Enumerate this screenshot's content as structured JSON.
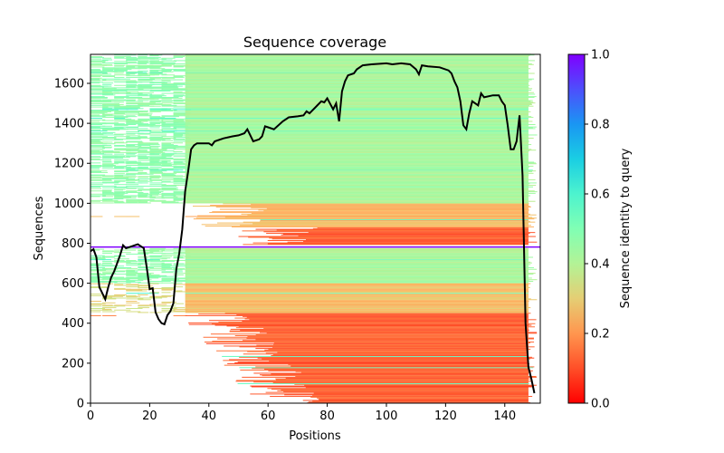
{
  "chart_data": {
    "type": "heatmap",
    "title": "Sequence coverage",
    "xlabel": "Positions",
    "ylabel": "Sequences",
    "xlim": [
      0,
      152
    ],
    "ylim": [
      0,
      1745
    ],
    "xticks": [
      0,
      20,
      40,
      60,
      80,
      100,
      120,
      140
    ],
    "yticks": [
      0,
      200,
      400,
      600,
      800,
      1000,
      1200,
      1400,
      1600
    ],
    "colorbar": {
      "label": "Sequence identity to query",
      "range": [
        0,
        1
      ],
      "ticks": [
        "0.0",
        "0.2",
        "0.4",
        "0.6",
        "0.8",
        "1.0"
      ],
      "colormap": "rainbow_r"
    },
    "query_row": 780,
    "coverage_line": {
      "color": "#000000",
      "points": [
        [
          0,
          760
        ],
        [
          1,
          770
        ],
        [
          2,
          730
        ],
        [
          3,
          580
        ],
        [
          4,
          550
        ],
        [
          5,
          520
        ],
        [
          6,
          580
        ],
        [
          7,
          630
        ],
        [
          8,
          660
        ],
        [
          9,
          700
        ],
        [
          10,
          740
        ],
        [
          11,
          790
        ],
        [
          12,
          775
        ],
        [
          13,
          780
        ],
        [
          14,
          785
        ],
        [
          15,
          790
        ],
        [
          16,
          795
        ],
        [
          17,
          785
        ],
        [
          18,
          775
        ],
        [
          19,
          680
        ],
        [
          20,
          570
        ],
        [
          21,
          575
        ],
        [
          22,
          455
        ],
        [
          23,
          420
        ],
        [
          24,
          400
        ],
        [
          25,
          395
        ],
        [
          26,
          440
        ],
        [
          27,
          460
        ],
        [
          28,
          500
        ],
        [
          29,
          670
        ],
        [
          30,
          750
        ],
        [
          31,
          870
        ],
        [
          32,
          1060
        ],
        [
          33,
          1160
        ],
        [
          34,
          1270
        ],
        [
          35,
          1290
        ],
        [
          36,
          1300
        ],
        [
          40,
          1300
        ],
        [
          41,
          1290
        ],
        [
          42,
          1310
        ],
        [
          45,
          1325
        ],
        [
          48,
          1335
        ],
        [
          50,
          1340
        ],
        [
          52,
          1350
        ],
        [
          53,
          1370
        ],
        [
          55,
          1310
        ],
        [
          57,
          1320
        ],
        [
          58,
          1335
        ],
        [
          59,
          1385
        ],
        [
          60,
          1380
        ],
        [
          62,
          1370
        ],
        [
          65,
          1410
        ],
        [
          67,
          1430
        ],
        [
          70,
          1435
        ],
        [
          72,
          1440
        ],
        [
          73,
          1460
        ],
        [
          74,
          1450
        ],
        [
          76,
          1480
        ],
        [
          78,
          1510
        ],
        [
          79,
          1505
        ],
        [
          80,
          1525
        ],
        [
          82,
          1470
        ],
        [
          83,
          1500
        ],
        [
          84,
          1410
        ],
        [
          85,
          1560
        ],
        [
          86,
          1610
        ],
        [
          87,
          1640
        ],
        [
          89,
          1650
        ],
        [
          90,
          1670
        ],
        [
          92,
          1690
        ],
        [
          95,
          1695
        ],
        [
          100,
          1700
        ],
        [
          102,
          1695
        ],
        [
          105,
          1700
        ],
        [
          108,
          1695
        ],
        [
          110,
          1670
        ],
        [
          111,
          1645
        ],
        [
          112,
          1690
        ],
        [
          114,
          1685
        ],
        [
          118,
          1680
        ],
        [
          121,
          1665
        ],
        [
          122,
          1650
        ],
        [
          123,
          1610
        ],
        [
          124,
          1580
        ],
        [
          125,
          1510
        ],
        [
          126,
          1390
        ],
        [
          127,
          1370
        ],
        [
          128,
          1450
        ],
        [
          129,
          1510
        ],
        [
          130,
          1500
        ],
        [
          131,
          1490
        ],
        [
          132,
          1550
        ],
        [
          133,
          1530
        ],
        [
          136,
          1540
        ],
        [
          138,
          1540
        ],
        [
          139,
          1510
        ],
        [
          140,
          1490
        ],
        [
          141,
          1390
        ],
        [
          142,
          1270
        ],
        [
          143,
          1270
        ],
        [
          144,
          1310
        ],
        [
          145,
          1440
        ],
        [
          146,
          1140
        ],
        [
          147,
          400
        ],
        [
          148,
          180
        ],
        [
          149,
          120
        ],
        [
          150,
          50
        ]
      ]
    },
    "identity_bands": [
      {
        "rows": [
          1000,
          1745
        ],
        "identity": 0.42
      },
      {
        "rows": [
          880,
          1000
        ],
        "identity": 0.25
      },
      {
        "rows": [
          790,
          880
        ],
        "identity": 0.12
      },
      {
        "rows": [
          600,
          775
        ],
        "identity": 0.42
      },
      {
        "rows": [
          450,
          600
        ],
        "identity": 0.27
      },
      {
        "rows": [
          0,
          450
        ],
        "identity": 0.12
      }
    ]
  }
}
